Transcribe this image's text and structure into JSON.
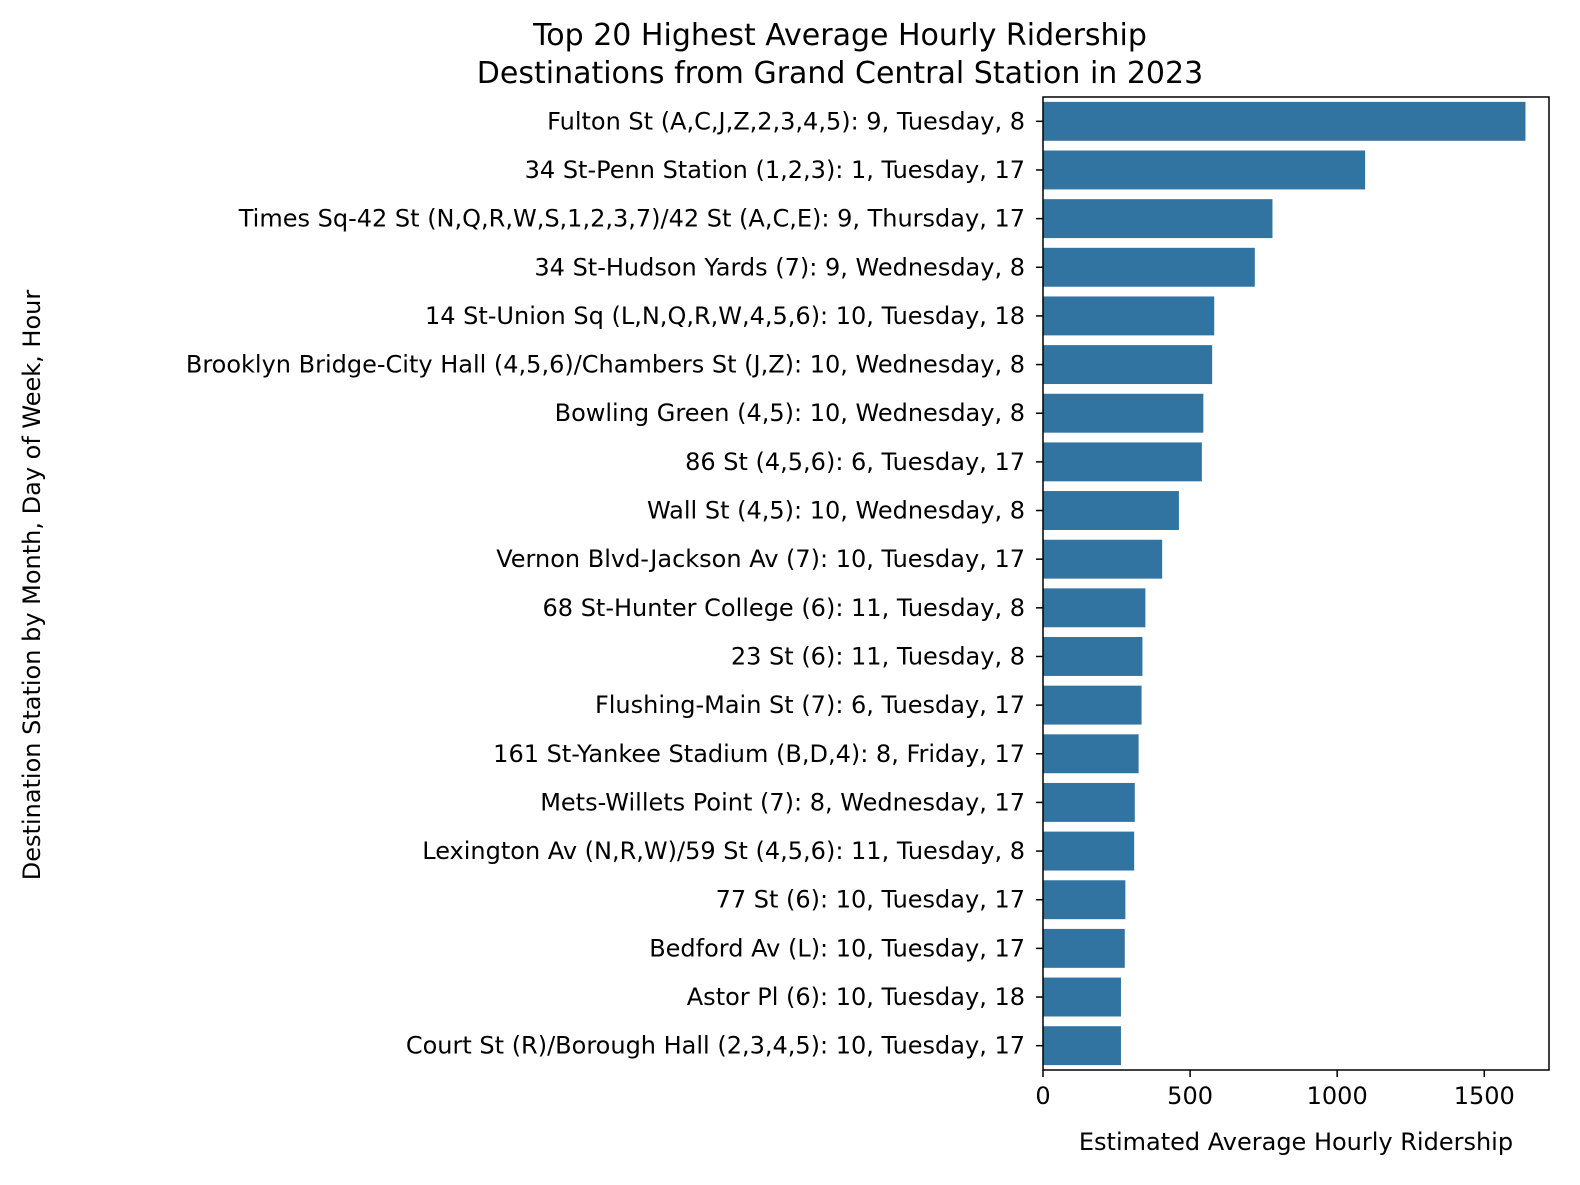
{
  "chart_data": {
    "type": "bar",
    "orientation": "horizontal",
    "title": [
      "Top 20 Highest Average Hourly Ridership",
      "Destinations from Grand Central Station in 2023"
    ],
    "xlabel": "Estimated Average Hourly Ridership",
    "ylabel": "Destination Station by Month, Day of Week, Hour",
    "xlim": [
      0,
      1720
    ],
    "xticks": [
      0,
      500,
      1000,
      1500
    ],
    "grid": false,
    "bar_color": "#3274a1",
    "categories": [
      "Fulton St (A,C,J,Z,2,3,4,5): 9, Tuesday, 8",
      "34 St-Penn Station (1,2,3): 1, Tuesday, 17",
      "Times Sq-42 St (N,Q,R,W,S,1,2,3,7)/42 St (A,C,E): 9, Thursday, 17",
      "34 St-Hudson Yards (7): 9, Wednesday, 8",
      "14 St-Union Sq (L,N,Q,R,W,4,5,6): 10, Tuesday, 18",
      "Brooklyn Bridge-City Hall (4,5,6)/Chambers St (J,Z): 10, Wednesday, 8",
      "Bowling Green (4,5): 10, Wednesday, 8",
      "86 St (4,5,6): 6, Tuesday, 17",
      "Wall St (4,5): 10, Wednesday, 8",
      "Vernon Blvd-Jackson Av (7): 10, Tuesday, 17",
      "68 St-Hunter College (6): 11, Tuesday, 8",
      "23 St (6): 11, Tuesday, 8",
      "Flushing-Main St (7): 6, Tuesday, 17",
      "161 St-Yankee Stadium (B,D,4): 8, Friday, 17",
      "Mets-Willets Point (7): 8, Wednesday, 17",
      "Lexington Av (N,R,W)/59 St (4,5,6): 11, Tuesday, 8",
      "77 St (6): 10, Tuesday, 17",
      "Bedford Av (L): 10, Tuesday, 17",
      "Astor Pl (6): 10, Tuesday, 18",
      "Court St (R)/Borough Hall (2,3,4,5): 10, Tuesday, 17"
    ],
    "values": [
      1640,
      1095,
      780,
      720,
      582,
      575,
      545,
      540,
      462,
      405,
      348,
      338,
      335,
      325,
      312,
      310,
      280,
      278,
      265,
      265
    ]
  }
}
